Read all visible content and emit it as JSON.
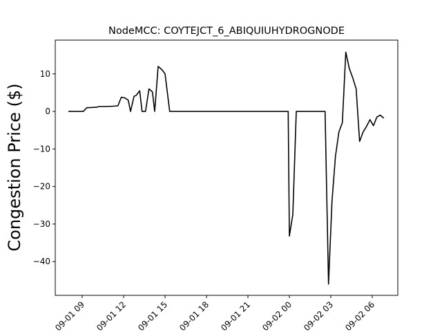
{
  "chart_data": {
    "type": "line",
    "title": "NodeMCC: COYTEJCT_6_ABIQUIUHYDROGNODE",
    "xlabel": "",
    "ylabel": "Congestion Price ($)",
    "xlim": [
      "2020-09-01 07:03",
      "2020-09-02 07:51"
    ],
    "ylim": [
      -49,
      19
    ],
    "x_ticks": [
      {
        "value": "2020-09-01 09:00",
        "label": "09-01 09"
      },
      {
        "value": "2020-09-01 12:00",
        "label": "09-01 12"
      },
      {
        "value": "2020-09-01 15:00",
        "label": "09-01 15"
      },
      {
        "value": "2020-09-01 18:00",
        "label": "09-01 18"
      },
      {
        "value": "2020-09-01 21:00",
        "label": "09-01 21"
      },
      {
        "value": "2020-09-02 00:00",
        "label": "09-02 00"
      },
      {
        "value": "2020-09-02 03:00",
        "label": "09-02 03"
      },
      {
        "value": "2020-09-02 06:00",
        "label": "09-02 06"
      }
    ],
    "y_ticks": [
      {
        "value": 10,
        "label": "10"
      },
      {
        "value": 0,
        "label": "0"
      },
      {
        "value": -10,
        "label": "−10"
      },
      {
        "value": -20,
        "label": "−20"
      },
      {
        "value": -30,
        "label": "−30"
      },
      {
        "value": -40,
        "label": "−40"
      }
    ],
    "grid": false,
    "legend": "none",
    "series": [
      {
        "color": "#000000",
        "points": [
          {
            "x": "2020-09-01 08:00",
            "y": 0
          },
          {
            "x": "2020-09-01 08:40",
            "y": 0
          },
          {
            "x": "2020-09-01 09:05",
            "y": 0
          },
          {
            "x": "2020-09-01 09:20",
            "y": 1.0
          },
          {
            "x": "2020-09-01 10:00",
            "y": 1.1
          },
          {
            "x": "2020-09-01 10:15",
            "y": 1.3
          },
          {
            "x": "2020-09-01 10:45",
            "y": 1.3
          },
          {
            "x": "2020-09-01 11:15",
            "y": 1.4
          },
          {
            "x": "2020-09-01 11:35",
            "y": 1.5
          },
          {
            "x": "2020-09-01 11:50",
            "y": 3.8
          },
          {
            "x": "2020-09-01 12:05",
            "y": 3.6
          },
          {
            "x": "2020-09-01 12:20",
            "y": 3.0
          },
          {
            "x": "2020-09-01 12:30",
            "y": 0
          },
          {
            "x": "2020-09-01 12:45",
            "y": 4.0
          },
          {
            "x": "2020-09-01 12:55",
            "y": 4.3
          },
          {
            "x": "2020-09-01 13:10",
            "y": 5.5
          },
          {
            "x": "2020-09-01 13:20",
            "y": 0
          },
          {
            "x": "2020-09-01 13:35",
            "y": 0
          },
          {
            "x": "2020-09-01 13:50",
            "y": 6.0
          },
          {
            "x": "2020-09-01 14:05",
            "y": 5.2
          },
          {
            "x": "2020-09-01 14:15",
            "y": 0
          },
          {
            "x": "2020-09-01 14:30",
            "y": 12.0
          },
          {
            "x": "2020-09-01 14:45",
            "y": 11.2
          },
          {
            "x": "2020-09-01 15:00",
            "y": 10.0
          },
          {
            "x": "2020-09-01 15:20",
            "y": 0
          },
          {
            "x": "2020-09-01 16:00",
            "y": 0
          },
          {
            "x": "2020-09-01 20:00",
            "y": 0
          },
          {
            "x": "2020-09-01 23:55",
            "y": 0
          },
          {
            "x": "2020-09-02 00:00",
            "y": -33.2
          },
          {
            "x": "2020-09-02 00:15",
            "y": -27.5
          },
          {
            "x": "2020-09-02 00:30",
            "y": 0
          },
          {
            "x": "2020-09-02 01:30",
            "y": 0
          },
          {
            "x": "2020-09-02 02:35",
            "y": 0
          },
          {
            "x": "2020-09-02 02:50",
            "y": -46.0
          },
          {
            "x": "2020-09-02 03:05",
            "y": -24.0
          },
          {
            "x": "2020-09-02 03:20",
            "y": -12.0
          },
          {
            "x": "2020-09-02 03:35",
            "y": -5.5
          },
          {
            "x": "2020-09-02 03:50",
            "y": -3.0
          },
          {
            "x": "2020-09-02 04:05",
            "y": 15.8
          },
          {
            "x": "2020-09-02 04:20",
            "y": 11.5
          },
          {
            "x": "2020-09-02 04:35",
            "y": 9.0
          },
          {
            "x": "2020-09-02 04:50",
            "y": 6.0
          },
          {
            "x": "2020-09-02 05:05",
            "y": -8.0
          },
          {
            "x": "2020-09-02 05:20",
            "y": -5.5
          },
          {
            "x": "2020-09-02 05:35",
            "y": -4.0
          },
          {
            "x": "2020-09-02 05:50",
            "y": -2.2
          },
          {
            "x": "2020-09-02 06:05",
            "y": -3.8
          },
          {
            "x": "2020-09-02 06:20",
            "y": -1.5
          },
          {
            "x": "2020-09-02 06:35",
            "y": -1.0
          },
          {
            "x": "2020-09-02 06:50",
            "y": -1.8
          }
        ]
      }
    ]
  }
}
